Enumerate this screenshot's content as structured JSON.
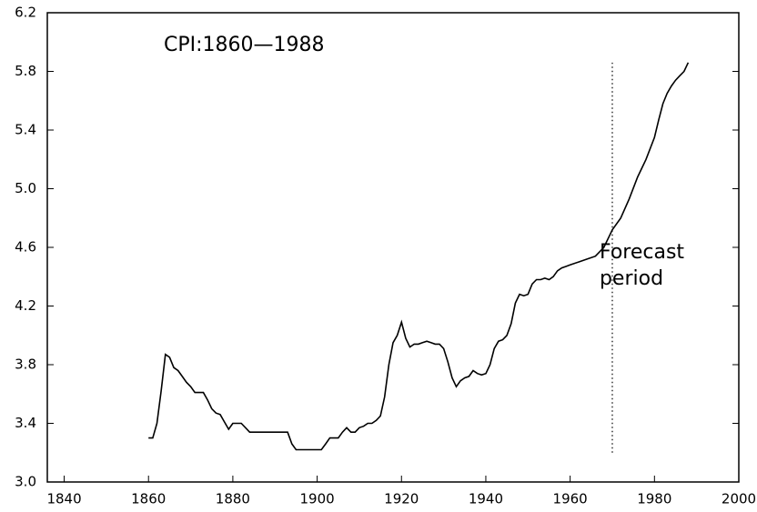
{
  "chart_data": {
    "type": "line",
    "title": "CPI:1860—1988",
    "annotation": {
      "lines": [
        "Forecast",
        "period"
      ],
      "x": 1970,
      "y": [
        3.2,
        5.86
      ]
    },
    "series": [
      {
        "color": "#000000",
        "x": [
          1860,
          1861,
          1862,
          1863,
          1864,
          1865,
          1866,
          1867,
          1868,
          1869,
          1870,
          1871,
          1873,
          1874,
          1875,
          1876,
          1877,
          1878,
          1879,
          1880,
          1882,
          1883,
          1884,
          1893,
          1894,
          1895,
          1901,
          1902,
          1903,
          1905,
          1906,
          1907,
          1908,
          1909,
          1910,
          1911,
          1912,
          1913,
          1914,
          1915,
          1916,
          1917,
          1918,
          1919,
          1920,
          1921,
          1922,
          1923,
          1924,
          1925,
          1926,
          1927,
          1928,
          1929,
          1930,
          1931,
          1932,
          1933,
          1934,
          1935,
          1936,
          1937,
          1938,
          1939,
          1940,
          1941,
          1942,
          1943,
          1944,
          1945,
          1946,
          1947,
          1948,
          1949,
          1950,
          1951,
          1952,
          1953,
          1954,
          1955,
          1956,
          1957,
          1958,
          1959,
          1960,
          1962,
          1964,
          1966,
          1968,
          1970,
          1972,
          1974,
          1976,
          1978,
          1980,
          1981,
          1982,
          1983,
          1984,
          1985,
          1986,
          1987,
          1988
        ],
        "values": [
          3.3,
          3.3,
          3.4,
          3.62,
          3.87,
          3.85,
          3.78,
          3.76,
          3.72,
          3.68,
          3.65,
          3.61,
          3.61,
          3.56,
          3.5,
          3.47,
          3.46,
          3.41,
          3.36,
          3.4,
          3.4,
          3.37,
          3.34,
          3.34,
          3.26,
          3.22,
          3.22,
          3.26,
          3.3,
          3.3,
          3.34,
          3.37,
          3.34,
          3.34,
          3.37,
          3.38,
          3.4,
          3.4,
          3.42,
          3.45,
          3.58,
          3.8,
          3.95,
          4.0,
          4.09,
          3.98,
          3.92,
          3.94,
          3.94,
          3.95,
          3.96,
          3.95,
          3.94,
          3.94,
          3.91,
          3.82,
          3.71,
          3.65,
          3.69,
          3.71,
          3.72,
          3.76,
          3.74,
          3.73,
          3.74,
          3.8,
          3.91,
          3.96,
          3.97,
          4.0,
          4.08,
          4.22,
          4.28,
          4.27,
          4.28,
          4.35,
          4.38,
          4.38,
          4.39,
          4.38,
          4.4,
          4.44,
          4.46,
          4.47,
          4.48,
          4.5,
          4.52,
          4.54,
          4.6,
          4.72,
          4.8,
          4.93,
          5.08,
          5.2,
          5.35,
          5.47,
          5.58,
          5.65,
          5.7,
          5.74,
          5.77,
          5.8,
          5.86
        ]
      }
    ],
    "xlim": [
      1836,
      2000
    ],
    "xticks": [
      1840,
      1860,
      1880,
      1900,
      1920,
      1940,
      1960,
      1980,
      2000
    ],
    "ylim": [
      3.0,
      6.2
    ],
    "yticks": [
      {
        "value": 3,
        "label": "3.0"
      },
      3.4,
      3.8,
      4.2,
      4.6,
      {
        "value": 5,
        "label": "5.0"
      },
      5.4,
      5.8,
      6.2
    ]
  }
}
